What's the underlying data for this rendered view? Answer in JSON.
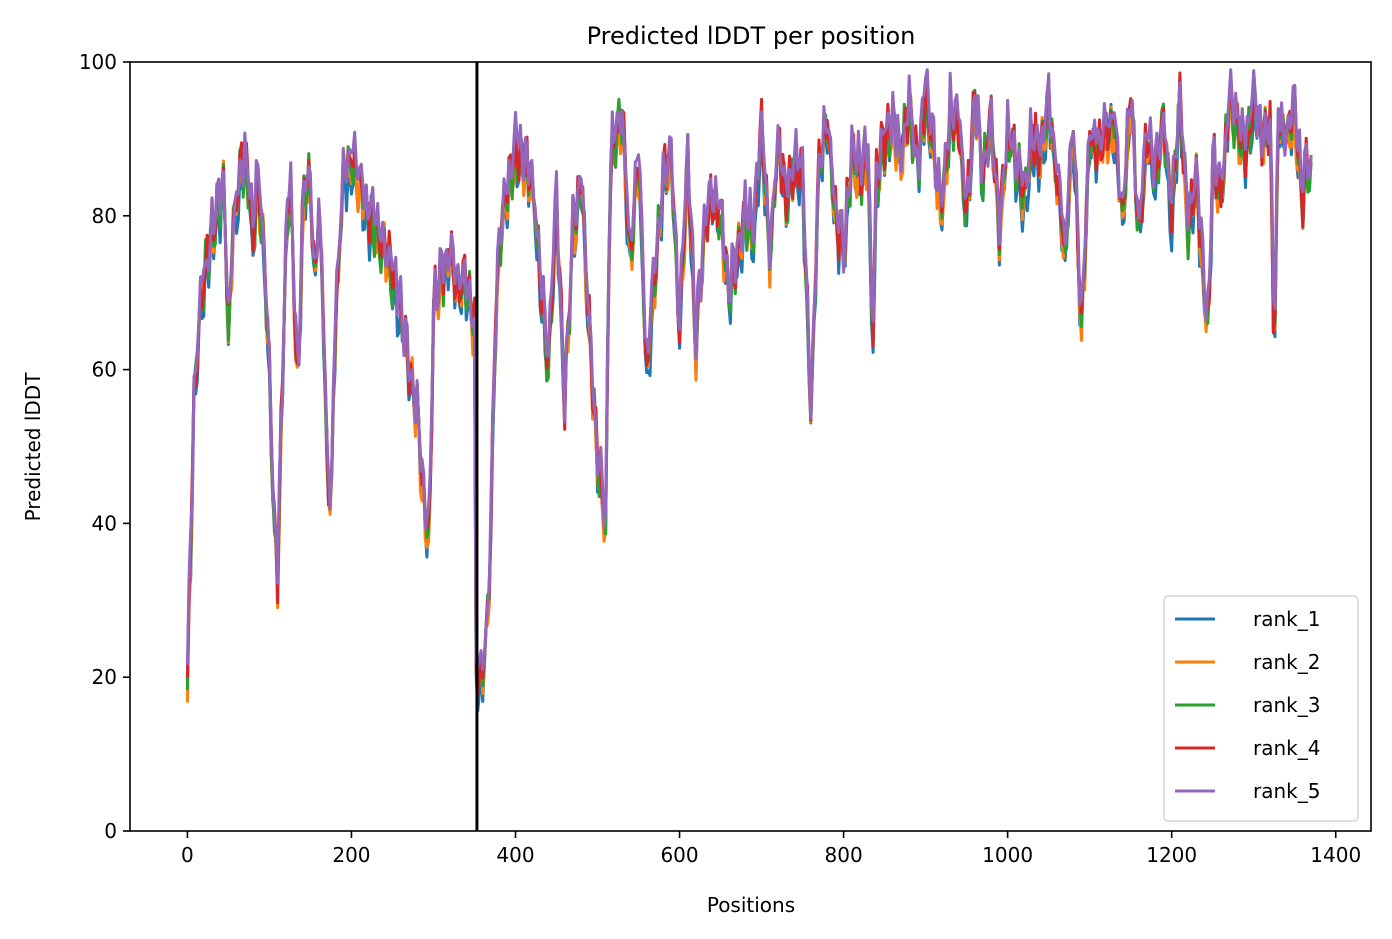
{
  "chart_data": {
    "type": "line",
    "title": "Predicted lDDT per position",
    "xlabel": "Positions",
    "ylabel": "Predicted lDDT",
    "xlim": [
      -70,
      1443
    ],
    "ylim": [
      0,
      100
    ],
    "xticks": [
      0,
      200,
      400,
      600,
      800,
      1000,
      1200,
      1400
    ],
    "yticks": [
      0,
      20,
      40,
      60,
      80,
      100
    ],
    "grid": false,
    "legend_position": "lower right",
    "chain_break": 353,
    "base_x": [
      0,
      8,
      15,
      25,
      35,
      45,
      50,
      55,
      60,
      65,
      70,
      75,
      80,
      85,
      90,
      95,
      100,
      105,
      110,
      115,
      120,
      125,
      130,
      135,
      140,
      145,
      150,
      155,
      160,
      165,
      170,
      175,
      180,
      190,
      200,
      210,
      220,
      230,
      240,
      250,
      260,
      270,
      280,
      290,
      295,
      300,
      310,
      320,
      330,
      340,
      345,
      350,
      352,
      355,
      360,
      365,
      370,
      375,
      380,
      385,
      390,
      395,
      400,
      410,
      420,
      430,
      440,
      450,
      460,
      470,
      480,
      490,
      500,
      510,
      515,
      520,
      530,
      540,
      550,
      560,
      570,
      580,
      590,
      600,
      610,
      620,
      630,
      640,
      650,
      660,
      670,
      680,
      690,
      700,
      710,
      720,
      730,
      740,
      750,
      760,
      770,
      780,
      790,
      800,
      810,
      820,
      830,
      835,
      840,
      850,
      860,
      870,
      880,
      890,
      900,
      910,
      920,
      930,
      940,
      950,
      960,
      970,
      980,
      990,
      1000,
      1010,
      1020,
      1030,
      1040,
      1050,
      1060,
      1070,
      1080,
      1090,
      1100,
      1110,
      1120,
      1130,
      1140,
      1150,
      1160,
      1170,
      1180,
      1190,
      1200,
      1210,
      1220,
      1230,
      1240,
      1245,
      1250,
      1260,
      1270,
      1280,
      1290,
      1300,
      1310,
      1320,
      1325,
      1330,
      1340,
      1350,
      1360,
      1365,
      1370
    ],
    "base_y": [
      19,
      55,
      68,
      75,
      80,
      84,
      64,
      78,
      82,
      86,
      87,
      83,
      76,
      85,
      80,
      72,
      60,
      40,
      33,
      55,
      75,
      86,
      70,
      57,
      78,
      86,
      84,
      72,
      80,
      72,
      48,
      42,
      65,
      85,
      87,
      85,
      80,
      78,
      76,
      72,
      68,
      60,
      55,
      40,
      38,
      68,
      72,
      75,
      70,
      72,
      68,
      65,
      20,
      21,
      20,
      25,
      40,
      65,
      75,
      80,
      83,
      85,
      88,
      87,
      85,
      72,
      60,
      82,
      55,
      78,
      85,
      65,
      48,
      40,
      85,
      90,
      92,
      75,
      87,
      60,
      72,
      85,
      88,
      65,
      88,
      63,
      78,
      82,
      80,
      70,
      75,
      80,
      78,
      92,
      75,
      90,
      82,
      87,
      85,
      55,
      86,
      92,
      80,
      75,
      88,
      85,
      88,
      62,
      84,
      90,
      92,
      88,
      94,
      86,
      96,
      88,
      80,
      93,
      92,
      80,
      95,
      85,
      92,
      78,
      90,
      87,
      82,
      90,
      88,
      95,
      85,
      75,
      92,
      65,
      90,
      88,
      91,
      92,
      80,
      95,
      78,
      90,
      85,
      92,
      80,
      95,
      78,
      85,
      70,
      65,
      88,
      82,
      95,
      92,
      88,
      95,
      90,
      92,
      62,
      92,
      90,
      93,
      82,
      88,
      84
    ],
    "series": [
      {
        "name": "rank_1",
        "color": "#1f77b4"
      },
      {
        "name": "rank_2",
        "color": "#ff7f0e"
      },
      {
        "name": "rank_3",
        "color": "#2ca02c"
      },
      {
        "name": "rank_4",
        "color": "#d62728"
      },
      {
        "name": "rank_5",
        "color": "#9467bd"
      }
    ]
  }
}
